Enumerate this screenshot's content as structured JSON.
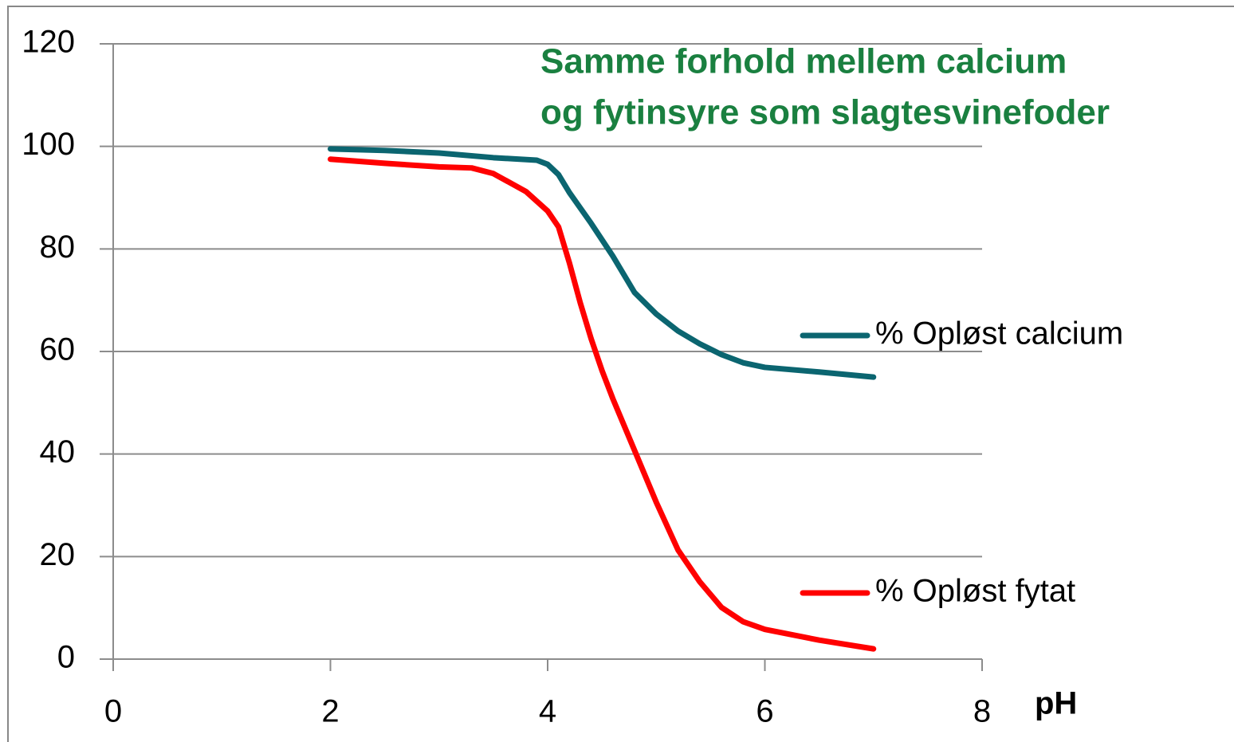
{
  "chart_data": {
    "type": "line",
    "title": [
      "Samme forhold mellem calcium",
      "og fytinsyre som slagtesvinefoder"
    ],
    "xlabel": "pH",
    "xlim": [
      0,
      8
    ],
    "xticks": [
      0,
      2,
      4,
      6,
      8
    ],
    "ylim": [
      0,
      120
    ],
    "yticks": [
      0,
      20,
      40,
      60,
      80,
      100,
      120
    ],
    "grid": true,
    "legend": "right",
    "series": [
      {
        "name": "% Opløst calcium",
        "color": "#0b6570",
        "x": [
          2,
          2.5,
          3,
          3.5,
          3.9,
          4.0,
          4.1,
          4.2,
          4.4,
          4.6,
          4.8,
          5.0,
          5.2,
          5.4,
          5.6,
          5.8,
          6.0,
          6.5,
          7
        ],
        "values": [
          99.5,
          99.2,
          98.7,
          97.8,
          97.3,
          96.5,
          94.5,
          91,
          85,
          78.6,
          71.5,
          67.3,
          64,
          61.5,
          59.4,
          57.8,
          56.9,
          56,
          55
        ]
      },
      {
        "name": "% Opløst fytat",
        "color": "#ff0000",
        "x": [
          2,
          2.5,
          3,
          3.3,
          3.5,
          3.8,
          4.0,
          4.1,
          4.2,
          4.3,
          4.4,
          4.5,
          4.6,
          4.8,
          5.0,
          5.2,
          5.4,
          5.6,
          5.8,
          6.0,
          6.5,
          7
        ],
        "values": [
          97.5,
          96.7,
          96,
          95.8,
          94.7,
          91.2,
          87.4,
          84.3,
          77.3,
          69.5,
          62.5,
          56.3,
          50.8,
          40.7,
          30.6,
          21.3,
          15.1,
          10.1,
          7.3,
          5.8,
          3.7,
          2
        ]
      }
    ]
  }
}
